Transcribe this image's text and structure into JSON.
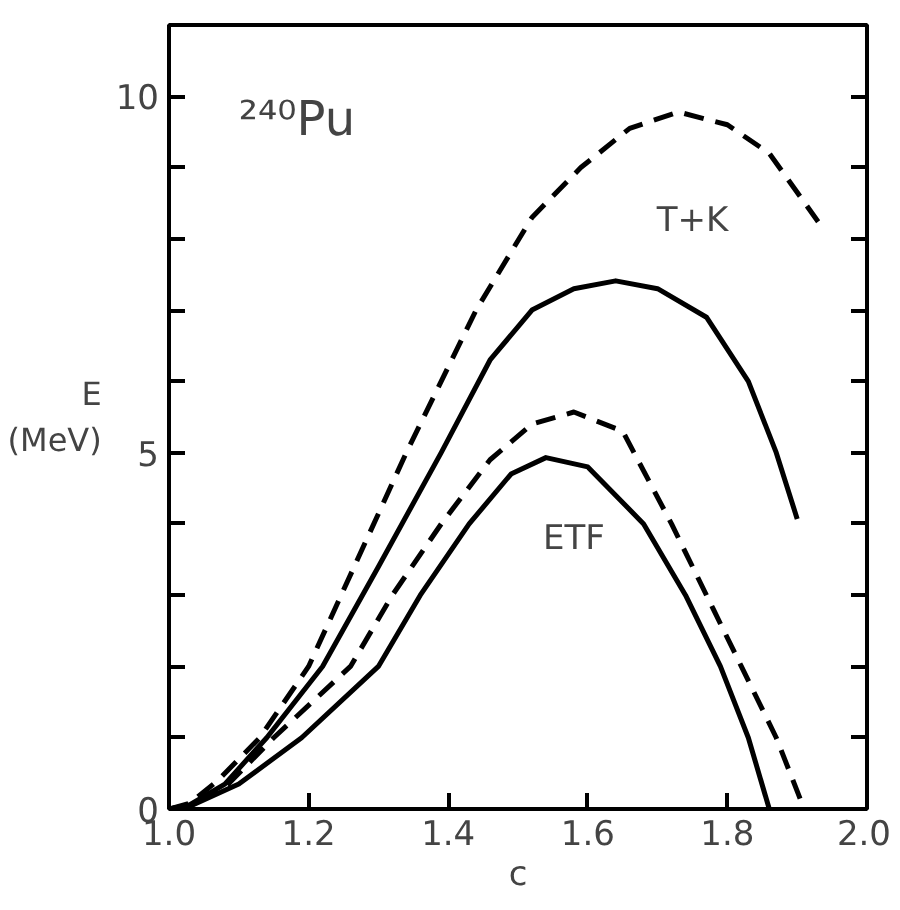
{
  "chart_data": {
    "type": "line",
    "title": "²⁴⁰Pu",
    "xlabel": "c",
    "ylabel": "E\n(MeV)",
    "xlim": [
      1.0,
      2.0
    ],
    "ylim": [
      0,
      11
    ],
    "xticks": [
      {
        "value": 1.0,
        "label": "1.0"
      },
      {
        "value": 1.2,
        "label": "1.2"
      },
      {
        "value": 1.4,
        "label": "1.4"
      },
      {
        "value": 1.6,
        "label": "1.6"
      },
      {
        "value": 1.8,
        "label": "1.8"
      },
      {
        "value": 2.0,
        "label": "2.0"
      }
    ],
    "yticks": [
      0,
      {
        "value": 1,
        "label": null
      },
      {
        "value": 2,
        "label": null
      },
      {
        "value": 3,
        "label": null
      },
      {
        "value": 4,
        "label": null
      },
      5,
      {
        "value": 6,
        "label": null
      },
      {
        "value": 7,
        "label": null
      },
      {
        "value": 8,
        "label": null
      },
      {
        "value": 9,
        "label": null
      },
      10,
      {
        "value": 11,
        "label": null
      }
    ],
    "grid": false,
    "series": [
      {
        "color": "#000000",
        "line_style": "dashed",
        "x": [
          1.0,
          1.03,
          1.07,
          1.13,
          1.2,
          1.27,
          1.34,
          1.44,
          1.52,
          1.59,
          1.66,
          1.73,
          1.8,
          1.86,
          1.93
        ],
        "values": [
          0,
          0.08,
          0.4,
          1,
          2,
          3.5,
          5,
          7,
          8.3,
          9,
          9.55,
          9.78,
          9.6,
          9.2,
          8.24
        ]
      },
      {
        "color": "#000000",
        "line_style": "solid",
        "x": [
          1.0,
          1.03,
          1.08,
          1.14,
          1.22,
          1.3,
          1.39,
          1.46,
          1.52,
          1.58,
          1.64,
          1.7,
          1.77,
          1.83,
          1.87,
          1.9
        ],
        "values": [
          0,
          0.06,
          0.35,
          1,
          2,
          3.4,
          5,
          6.3,
          7,
          7.3,
          7.41,
          7.3,
          6.9,
          6,
          5,
          4.07
        ]
      },
      {
        "color": "#000000",
        "line_style": "dashed",
        "x": [
          1.0,
          1.03,
          1.08,
          1.15,
          1.26,
          1.32,
          1.39,
          1.46,
          1.52,
          1.58,
          1.65,
          1.72,
          1.78,
          1.82,
          1.87,
          1.91
        ],
        "values": [
          0,
          0.05,
          0.3,
          1,
          2,
          3,
          4,
          4.9,
          5.4,
          5.57,
          5.3,
          4,
          2.8,
          2,
          1,
          0
        ]
      },
      {
        "color": "#000000",
        "line_style": "solid",
        "x": [
          1.0,
          1.03,
          1.1,
          1.19,
          1.3,
          1.36,
          1.43,
          1.49,
          1.54,
          1.6,
          1.68,
          1.74,
          1.79,
          1.83,
          1.86
        ],
        "values": [
          0,
          0.04,
          0.35,
          1,
          2,
          3,
          4,
          4.7,
          4.93,
          4.8,
          4,
          3,
          2,
          1,
          0
        ]
      }
    ],
    "annotations": [
      "T+K",
      "ETF"
    ]
  }
}
